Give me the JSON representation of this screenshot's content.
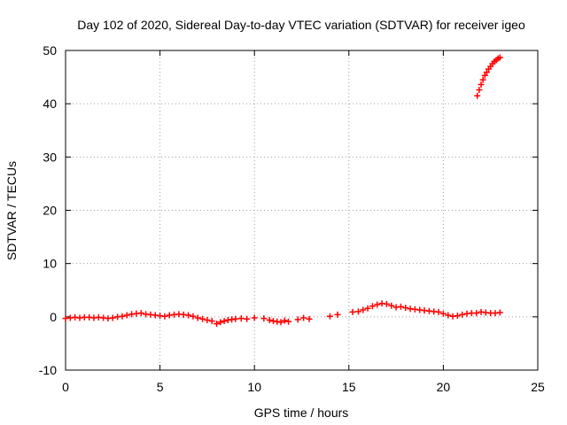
{
  "chart_data": {
    "type": "scatter",
    "title": "Day 102 of 2020, Sidereal Day-to-day VTEC variation (SDTVAR) for receiver igeo",
    "xlabel": "GPS time / hours",
    "ylabel": "SDTVAR / TECUs",
    "xlim": [
      0,
      25
    ],
    "ylim": [
      -10,
      50
    ],
    "xticks": [
      0,
      5,
      10,
      15,
      20,
      25
    ],
    "yticks": [
      -10,
      0,
      10,
      20,
      30,
      40,
      50
    ],
    "grid": true,
    "marker": "plus",
    "color": "#ff0000",
    "series": [
      {
        "name": "SDTVAR",
        "x": [
          0.0,
          0.25,
          0.5,
          0.75,
          1.0,
          1.25,
          1.5,
          1.75,
          2.0,
          2.25,
          2.5,
          2.75,
          3.0,
          3.25,
          3.5,
          3.75,
          4.0,
          4.25,
          4.5,
          4.75,
          5.0,
          5.25,
          5.5,
          5.75,
          6.0,
          6.25,
          6.5,
          6.75,
          7.0,
          7.25,
          7.5,
          7.75,
          8.0,
          8.2,
          8.4,
          8.6,
          8.8,
          9.0,
          9.3,
          9.6,
          10.0,
          10.5,
          10.8,
          11.0,
          11.2,
          11.4,
          11.6,
          11.8,
          12.3,
          12.6,
          12.9,
          14.0,
          14.4,
          15.2,
          15.5,
          15.75,
          16.0,
          16.25,
          16.5,
          16.75,
          17.0,
          17.25,
          17.5,
          17.75,
          18.0,
          18.25,
          18.5,
          18.75,
          19.0,
          19.25,
          19.5,
          19.75,
          20.0,
          20.25,
          20.5,
          20.75,
          21.0,
          21.25,
          21.5,
          21.75,
          22.0,
          22.25,
          22.5,
          22.75,
          23.0,
          21.8,
          21.9,
          22.0,
          22.1,
          22.2,
          22.3,
          22.4,
          22.5,
          22.6,
          22.7,
          22.8,
          22.9,
          23.0
        ],
        "y": [
          -0.3,
          -0.2,
          -0.1,
          -0.2,
          -0.1,
          -0.1,
          -0.2,
          -0.1,
          -0.2,
          -0.3,
          -0.2,
          0.0,
          0.1,
          0.3,
          0.5,
          0.6,
          0.7,
          0.5,
          0.4,
          0.3,
          0.2,
          0.1,
          0.3,
          0.4,
          0.5,
          0.4,
          0.3,
          0.1,
          -0.2,
          -0.4,
          -0.6,
          -0.8,
          -1.3,
          -1.0,
          -0.8,
          -0.6,
          -0.5,
          -0.4,
          -0.3,
          -0.4,
          -0.2,
          -0.3,
          -0.6,
          -0.8,
          -0.9,
          -1.0,
          -0.7,
          -0.9,
          -0.5,
          -0.2,
          -0.4,
          0.1,
          0.4,
          0.9,
          1.0,
          1.3,
          1.6,
          2.0,
          2.3,
          2.5,
          2.4,
          2.1,
          1.8,
          1.9,
          1.7,
          1.5,
          1.4,
          1.3,
          1.2,
          1.1,
          1.0,
          0.9,
          0.6,
          0.3,
          0.1,
          0.2,
          0.4,
          0.6,
          0.7,
          0.7,
          0.9,
          0.8,
          0.7,
          0.7,
          0.8,
          41.5,
          42.6,
          43.6,
          44.5,
          45.3,
          45.9,
          46.5,
          47.0,
          47.5,
          47.9,
          48.2,
          48.5,
          48.7
        ]
      }
    ]
  }
}
